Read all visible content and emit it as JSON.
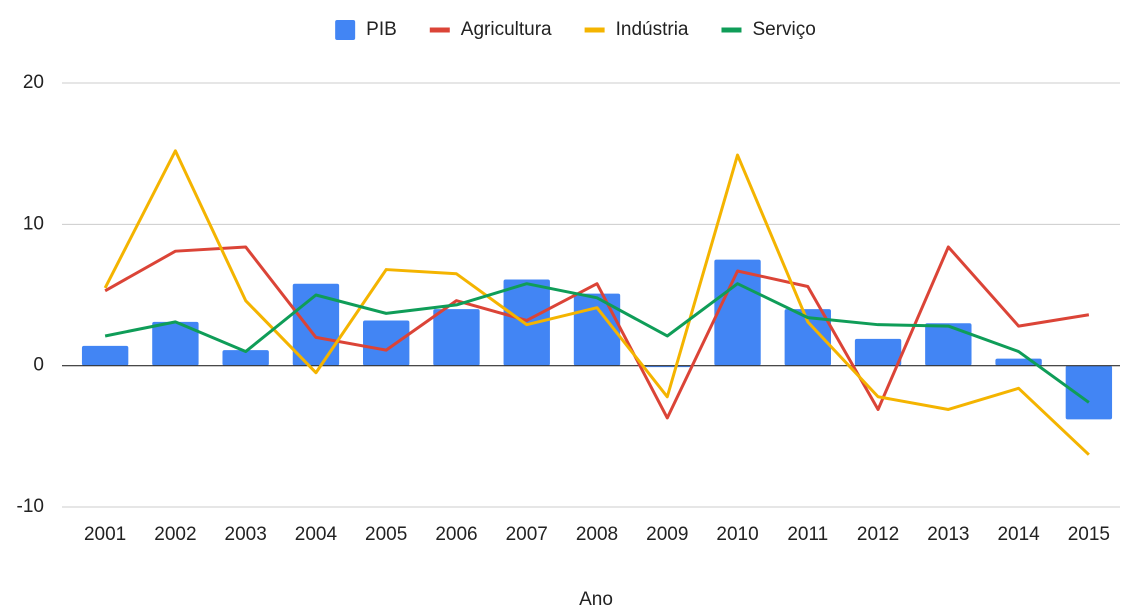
{
  "chart_data": {
    "type": "combo",
    "x_label": "Ano",
    "categories": [
      "2001",
      "2002",
      "2003",
      "2004",
      "2005",
      "2006",
      "2007",
      "2008",
      "2009",
      "2010",
      "2011",
      "2012",
      "2013",
      "2014",
      "2015"
    ],
    "series": [
      {
        "name": "PIB",
        "type": "bar",
        "color": "#4285f4",
        "values": [
          1.4,
          3.1,
          1.1,
          5.8,
          3.2,
          4.0,
          6.1,
          5.1,
          -0.1,
          7.5,
          4.0,
          1.9,
          3.0,
          0.5,
          -3.8
        ]
      },
      {
        "name": "Agricultura",
        "type": "line",
        "color": "#db4437",
        "values": [
          5.3,
          8.1,
          8.4,
          2.0,
          1.1,
          4.6,
          3.2,
          5.8,
          -3.7,
          6.7,
          5.6,
          -3.1,
          8.4,
          2.8,
          3.6
        ]
      },
      {
        "name": "Indústria",
        "type": "line",
        "color": "#f4b400",
        "values": [
          5.5,
          15.2,
          4.6,
          -0.5,
          6.8,
          6.5,
          2.9,
          4.1,
          -2.2,
          14.9,
          3.1,
          -2.2,
          -3.1,
          -1.6,
          -6.3
        ]
      },
      {
        "name": "Serviço",
        "type": "line",
        "color": "#0f9d58",
        "values": [
          2.1,
          3.1,
          1.0,
          5.0,
          3.7,
          4.3,
          5.8,
          4.8,
          2.1,
          5.8,
          3.4,
          2.9,
          2.8,
          1.0,
          -2.6
        ]
      }
    ],
    "ylim": [
      -10,
      20
    ],
    "yticks": [
      -10,
      0,
      10,
      20
    ],
    "grid": true,
    "legend": "top"
  }
}
